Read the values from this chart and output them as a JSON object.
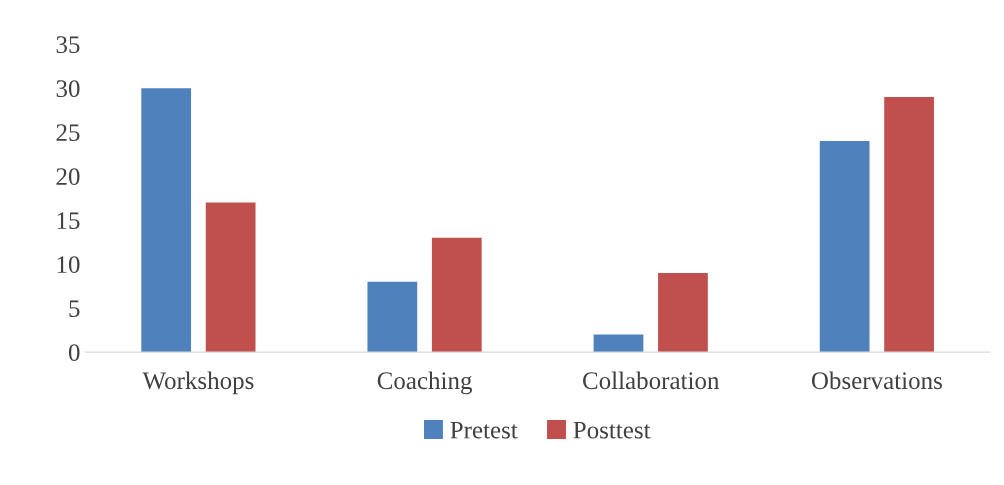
{
  "chart_data": {
    "type": "bar",
    "categories": [
      "Workshops",
      "Coaching",
      "Collaboration",
      "Observations"
    ],
    "series": [
      {
        "name": "Pretest",
        "color": "#4f81bd",
        "values": [
          30,
          8,
          2,
          24
        ]
      },
      {
        "name": "Posttest",
        "color": "#c0504d",
        "values": [
          17,
          13,
          9,
          29
        ]
      }
    ],
    "ylim": [
      0,
      35
    ],
    "yticks": [
      0,
      5,
      10,
      15,
      20,
      25,
      30,
      35
    ],
    "grid": false,
    "legend": "bottom"
  }
}
